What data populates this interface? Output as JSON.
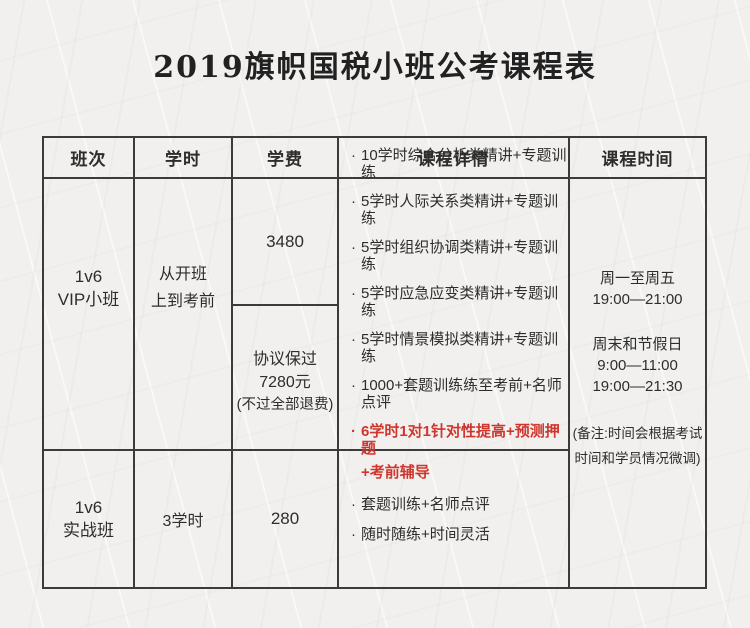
{
  "title": "2019旗帜国税小班公考课程表",
  "glyphs": {
    "bullet": "·"
  },
  "colors": {
    "background": "#f1f0ee",
    "border": "#3b3b3b",
    "text": "#2d2d2d",
    "highlight_red": "#cf362e"
  },
  "table": {
    "columns": [
      "班次",
      "学时",
      "学费",
      "课程详情",
      "课程时间"
    ],
    "vip_row": {
      "class_line1": "1v6",
      "class_line2": "VIP小班",
      "hours_line1": "从开班",
      "hours_line2": "上到考前",
      "fee_standard": "3480",
      "fee_protocol_line1": "协议保过",
      "fee_protocol_line2": "7280元",
      "fee_protocol_line3": "(不过全部退费)",
      "details": [
        "10学时综合分析类精讲+专题训练",
        "5学时人际关系类精讲+专题训练",
        "5学时组织协调类精讲+专题训练",
        "5学时应急应变类精讲+专题训练",
        "5学时情景模拟类精讲+专题训练",
        "1000+套题训练练至考前+名师点评"
      ],
      "details_highlight_line1": "6学时1对1针对性提高+预测押题",
      "details_highlight_line2": "+考前辅导"
    },
    "schedule": {
      "weekday_label": "周一至周五",
      "weekday_time": "19:00—21:00",
      "weekend_label": "周末和节假日",
      "weekend_time_morning": "9:00—11:00",
      "weekend_time_evening": "19:00—21:30",
      "note_line1": "(备注:时间会根据考试",
      "note_line2": "时间和学员情况微调)"
    },
    "practice_row": {
      "class_line1": "1v6",
      "class_line2": "实战班",
      "hours": "3学时",
      "fee": "280",
      "details": [
        "套题训练+名师点评",
        "随时随练+时间灵活"
      ]
    }
  }
}
